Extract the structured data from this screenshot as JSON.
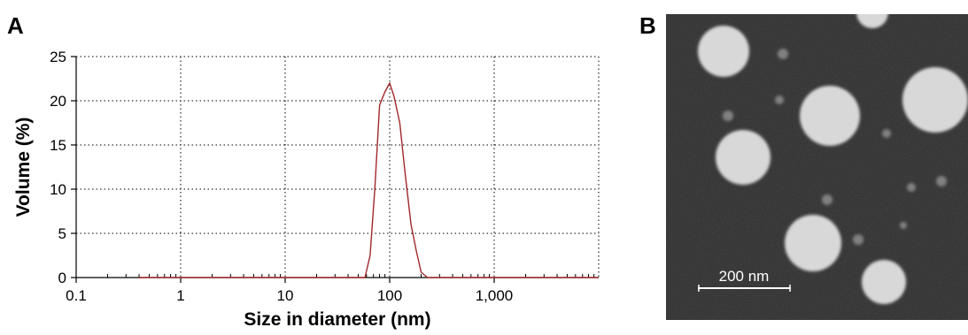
{
  "panels": {
    "a_label": "A",
    "b_label": "B"
  },
  "chart_data": {
    "type": "line",
    "title": "",
    "xlabel": "Size in diameter (nm)",
    "ylabel": "Volume (%)",
    "x_scale": "log",
    "xlim": [
      0.1,
      10000
    ],
    "ylim": [
      0,
      25
    ],
    "x_ticks": [
      0.1,
      1,
      10,
      100,
      1000
    ],
    "x_tick_labels": [
      "0.1",
      "1",
      "10",
      "100",
      "1,000"
    ],
    "y_ticks": [
      0,
      5,
      10,
      15,
      20,
      25
    ],
    "y_tick_labels": [
      "0",
      "5",
      "10",
      "15",
      "20",
      "25"
    ],
    "grid": true,
    "grid_style": "dotted",
    "legend": "none",
    "line_color": "#a0282a",
    "series": [
      {
        "x": [
          0.4,
          1,
          10,
          40,
          58,
          65,
          72,
          80,
          90,
          100,
          110,
          125,
          140,
          160,
          180,
          200,
          230,
          260,
          1000,
          10000
        ],
        "y": [
          0,
          0,
          0,
          0,
          0,
          2.5,
          10,
          19.5,
          21,
          22,
          20.5,
          17.5,
          12,
          6,
          3,
          0.6,
          0,
          0,
          0,
          0
        ]
      }
    ]
  },
  "micrograph": {
    "scale_bar_label": "200 nm",
    "background_color": "#2c2c2c",
    "particle_color": "#d8d8d8"
  }
}
